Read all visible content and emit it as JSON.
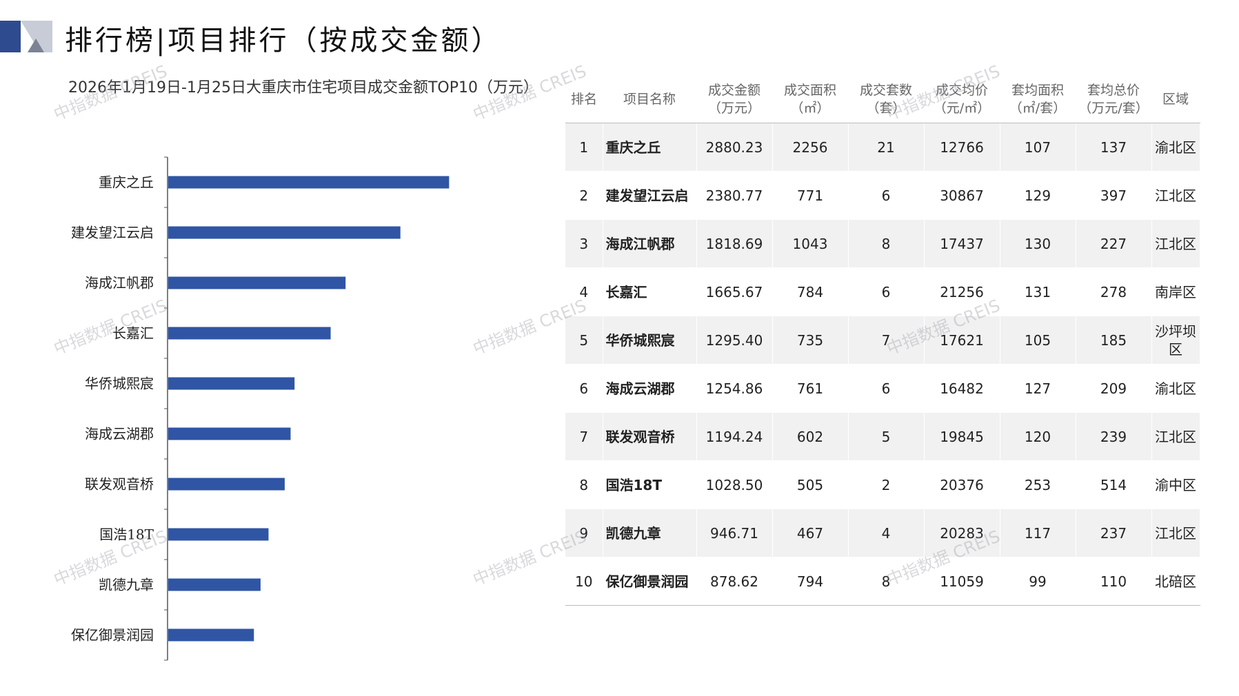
{
  "header": {
    "title": "排行榜|项目排行（按成交金额）"
  },
  "chart_title": "2026年1月19日-1月25日大重庆市住宅项目成交金额TOP10（万元）",
  "watermark": "中指数据 CREIS",
  "colors": {
    "bar": "#2f55a4",
    "logo_dark": "#2f4b8f",
    "logo_light": "#c8ccd6"
  },
  "chart_data": {
    "type": "bar",
    "orientation": "horizontal",
    "title": "2026年1月19日-1月25日大重庆市住宅项目成交金额TOP10（万元）",
    "categories": [
      "重庆之丘",
      "建发望江云启",
      "海成江帆郡",
      "长嘉汇",
      "华侨城熙宸",
      "海成云湖郡",
      "联发观音桥",
      "国浩18T",
      "凯德九章",
      "保亿御景润园"
    ],
    "values": [
      2880.23,
      2380.77,
      1818.69,
      1665.67,
      1295.4,
      1254.86,
      1194.24,
      1028.5,
      946.71,
      878.62
    ],
    "xlim": [
      0,
      3500
    ],
    "grid": false,
    "legend": "none"
  },
  "table": {
    "headers": [
      [
        "排名"
      ],
      [
        "项目名称"
      ],
      [
        "成交金额",
        "（万元）"
      ],
      [
        "成交面积",
        "（㎡）"
      ],
      [
        "成交套数",
        "（套）"
      ],
      [
        "成交均价",
        "（元/㎡）"
      ],
      [
        "套均面积",
        "（㎡/套）"
      ],
      [
        "套均总价",
        "（万元/套）"
      ],
      [
        "区域"
      ]
    ],
    "rows": [
      [
        "1",
        "重庆之丘",
        "2880.23",
        "2256",
        "21",
        "12766",
        "107",
        "137",
        "渝北区"
      ],
      [
        "2",
        "建发望江云启",
        "2380.77",
        "771",
        "6",
        "30867",
        "129",
        "397",
        "江北区"
      ],
      [
        "3",
        "海成江帆郡",
        "1818.69",
        "1043",
        "8",
        "17437",
        "130",
        "227",
        "江北区"
      ],
      [
        "4",
        "长嘉汇",
        "1665.67",
        "784",
        "6",
        "21256",
        "131",
        "278",
        "南岸区"
      ],
      [
        "5",
        "华侨城熙宸",
        "1295.40",
        "735",
        "7",
        "17621",
        "105",
        "185",
        "沙坪坝区"
      ],
      [
        "6",
        "海成云湖郡",
        "1254.86",
        "761",
        "6",
        "16482",
        "127",
        "209",
        "渝北区"
      ],
      [
        "7",
        "联发观音桥",
        "1194.24",
        "602",
        "5",
        "19845",
        "120",
        "239",
        "江北区"
      ],
      [
        "8",
        "国浩18T",
        "1028.50",
        "505",
        "2",
        "20376",
        "253",
        "514",
        "渝中区"
      ],
      [
        "9",
        "凯德九章",
        "946.71",
        "467",
        "4",
        "20283",
        "117",
        "237",
        "江北区"
      ],
      [
        "10",
        "保亿御景润园",
        "878.62",
        "794",
        "8",
        "11059",
        "99",
        "110",
        "北碚区"
      ]
    ]
  }
}
